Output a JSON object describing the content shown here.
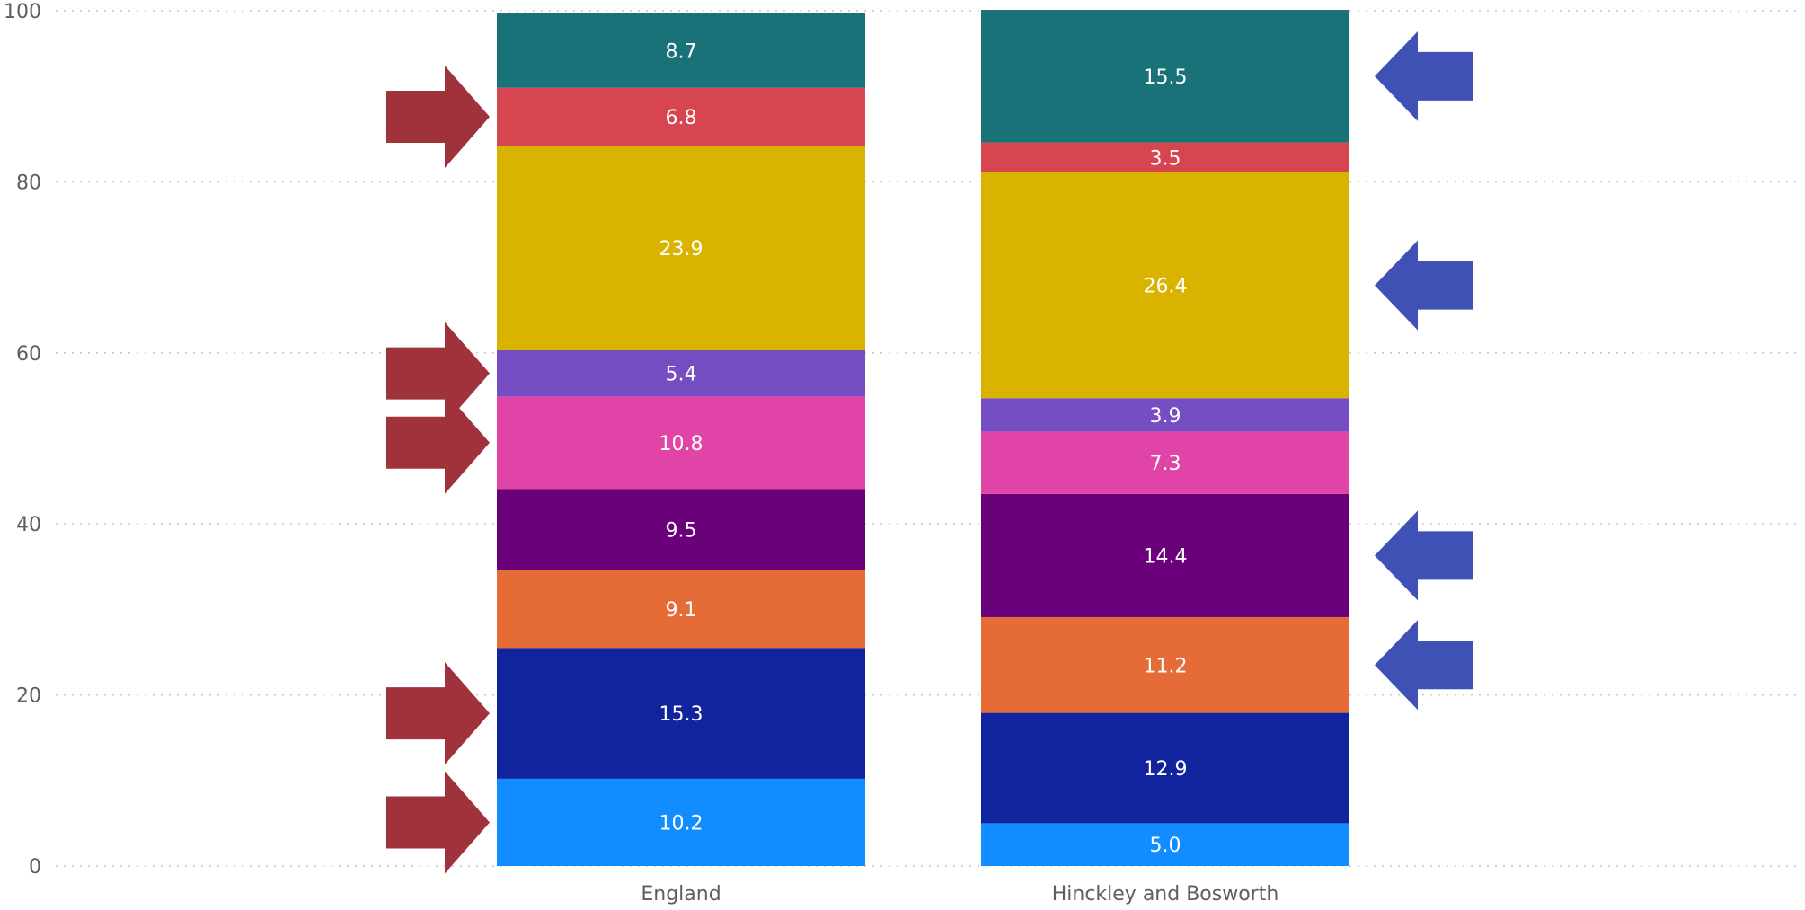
{
  "chart_data": {
    "type": "bar",
    "stacked": true,
    "categories": [
      "England",
      "Hinckley and Bosworth"
    ],
    "series": [
      {
        "color": "#118dff",
        "values": [
          10.2,
          5.0
        ],
        "labels": [
          "10.2",
          "5.0"
        ]
      },
      {
        "color": "#12239e",
        "values": [
          15.3,
          12.9
        ],
        "labels": [
          "15.3",
          "12.9"
        ]
      },
      {
        "color": "#e66c37",
        "values": [
          9.1,
          11.2
        ],
        "labels": [
          "9.1",
          "11.2"
        ]
      },
      {
        "color": "#6b007b",
        "values": [
          9.5,
          14.4
        ],
        "labels": [
          "9.5",
          "14.4"
        ]
      },
      {
        "color": "#e044a7",
        "values": [
          10.8,
          7.3
        ],
        "labels": [
          "10.8",
          "7.3"
        ]
      },
      {
        "color": "#744ec2",
        "values": [
          5.4,
          3.9
        ],
        "labels": [
          "5.4",
          "3.9"
        ]
      },
      {
        "color": "#d9b300",
        "values": [
          23.9,
          26.4
        ],
        "labels": [
          "23.9",
          "26.4"
        ]
      },
      {
        "color": "#d64550",
        "values": [
          6.8,
          3.5
        ],
        "labels": [
          "6.8",
          "3.5"
        ]
      },
      {
        "color": "#197278",
        "values": [
          8.7,
          15.5
        ],
        "labels": [
          "8.7",
          "15.5"
        ]
      }
    ],
    "ylim": [
      0,
      100
    ],
    "yticks": [
      "0",
      "20",
      "40",
      "60",
      "80",
      "100"
    ],
    "grid": true,
    "annotations": {
      "left_arrows": {
        "color": "#a0323c",
        "direction": "right",
        "series_indices": [
          0,
          1,
          4,
          5,
          7
        ]
      },
      "right_arrows": {
        "color": "#3f51b5",
        "direction": "left",
        "series_indices": [
          2,
          3,
          6,
          8
        ]
      }
    }
  }
}
